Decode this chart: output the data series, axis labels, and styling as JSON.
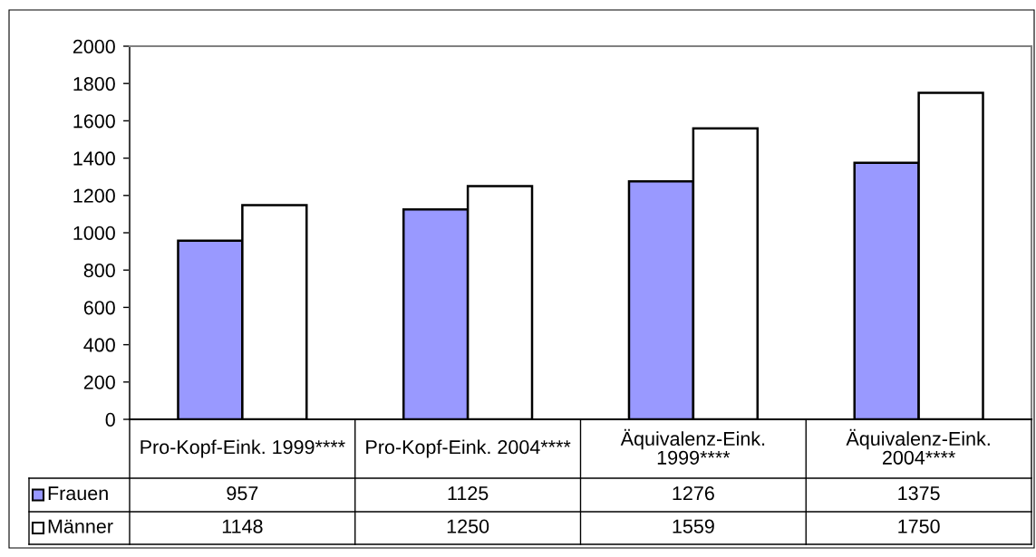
{
  "chart_data": {
    "type": "bar",
    "categories": [
      "Pro-Kopf-Eink. 1999****",
      "Pro-Kopf-Eink. 2004****",
      "Äquivalenz-Eink. 1999****",
      "Äquivalenz-Eink. 2004****"
    ],
    "series": [
      {
        "name": "Frauen",
        "color": "#9999ff",
        "values": [
          957,
          1125,
          1276,
          1375
        ]
      },
      {
        "name": "Männer",
        "color": "#ffffff",
        "values": [
          1148,
          1250,
          1559,
          1750
        ]
      }
    ],
    "ylim": [
      0,
      2000
    ],
    "yticks": [
      0,
      200,
      400,
      600,
      800,
      1000,
      1200,
      1400,
      1600,
      1800,
      2000
    ],
    "data_labels": true,
    "legend": "bottom"
  }
}
